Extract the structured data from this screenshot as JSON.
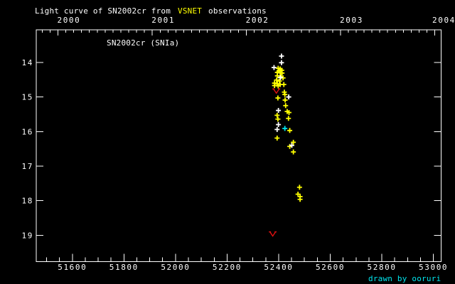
{
  "title": {
    "prefix": "Light curve of SN2002cr from",
    "highlight": "VSNET",
    "suffix": "observations"
  },
  "credit": "drawn by ooruri",
  "colors": {
    "background": "#000000",
    "frame": "#ffffff",
    "text": "#ffffff",
    "title_highlight": "#ffff00",
    "credit": "#00e5ee",
    "yellow": "#ffff00",
    "white": "#ffffff",
    "cyan": "#00e5ee",
    "red": "#e01010"
  },
  "chart_data": {
    "type": "scatter",
    "title": "Light curve of SN2002cr from VSNET observations",
    "inner_label": "SN2002cr (SNIa)",
    "x_bottom": {
      "unit": "MJD",
      "range": [
        51460,
        53030
      ],
      "major_ticks": [
        51600,
        51800,
        52000,
        52200,
        52400,
        52600,
        52800,
        53000
      ],
      "minor_step": 50
    },
    "x_top": {
      "unit": "year",
      "major_ticks": [
        {
          "label": "2000",
          "mjd": 51544
        },
        {
          "label": "2001",
          "mjd": 51910
        },
        {
          "label": "2002",
          "mjd": 52275
        },
        {
          "label": "2003",
          "mjd": 52640
        },
        {
          "label": "2004",
          "mjd": 53005
        }
      ],
      "minor": "monthly"
    },
    "y": {
      "unit": "magnitude",
      "inverted": true,
      "range": [
        13.06,
        19.76
      ],
      "major_ticks": [
        14,
        15,
        16,
        17,
        18,
        19
      ]
    },
    "series": [
      {
        "name": "observations-yellow",
        "color_key": "yellow",
        "marker": "plus",
        "points": [
          [
            52398,
            14.17
          ],
          [
            52406,
            14.19
          ],
          [
            52412,
            14.23
          ],
          [
            52401,
            14.25
          ],
          [
            52395,
            14.29
          ],
          [
            52406,
            14.3
          ],
          [
            52413,
            14.31
          ],
          [
            52395,
            14.39
          ],
          [
            52409,
            14.41
          ],
          [
            52417,
            14.45
          ],
          [
            52392,
            14.51
          ],
          [
            52403,
            14.54
          ],
          [
            52384,
            14.6
          ],
          [
            52395,
            14.62
          ],
          [
            52406,
            14.64
          ],
          [
            52420,
            14.64
          ],
          [
            52384,
            14.67
          ],
          [
            52398,
            14.68
          ],
          [
            52422,
            14.86
          ],
          [
            52424,
            14.93
          ],
          [
            52397,
            15.03
          ],
          [
            52425,
            15.09
          ],
          [
            52427,
            15.25
          ],
          [
            52433,
            15.42
          ],
          [
            52440,
            15.45
          ],
          [
            52394,
            15.53
          ],
          [
            52438,
            15.62
          ],
          [
            52397,
            15.64
          ],
          [
            52443,
            15.97
          ],
          [
            52394,
            16.19
          ],
          [
            52457,
            16.31
          ],
          [
            52443,
            16.43
          ],
          [
            52457,
            16.59
          ],
          [
            52481,
            17.61
          ],
          [
            52475,
            17.81
          ],
          [
            52483,
            17.88
          ],
          [
            52483,
            17.96
          ]
        ]
      },
      {
        "name": "observations-white",
        "color_key": "white",
        "marker": "plus",
        "points": [
          [
            52411,
            13.82
          ],
          [
            52411,
            14.01
          ],
          [
            52382,
            14.15
          ],
          [
            52407,
            14.44
          ],
          [
            52439,
            15.0
          ],
          [
            52399,
            15.39
          ],
          [
            52399,
            15.8
          ],
          [
            52394,
            15.94
          ],
          [
            52451,
            16.4
          ]
        ]
      },
      {
        "name": "observations-cyan",
        "color_key": "cyan",
        "marker": "plus",
        "points": [
          [
            52424,
            15.91
          ]
        ]
      },
      {
        "name": "upper-limits-red",
        "color_key": "red",
        "marker": "limit-arrow",
        "points": [
          [
            52391,
            14.83
          ],
          [
            52377,
            18.96
          ]
        ]
      }
    ]
  }
}
